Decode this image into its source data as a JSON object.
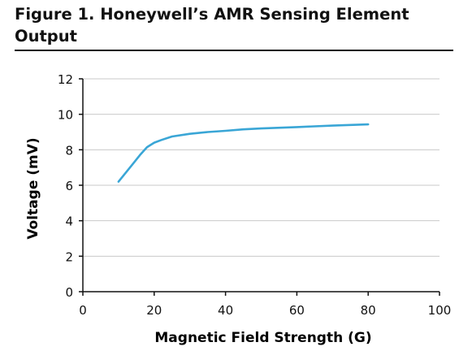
{
  "figure": {
    "title": "Figure 1. Honeywell’s AMR Sensing Element Output"
  },
  "colors": {
    "line": "#3aa6d6",
    "grid": "#c9c9c9",
    "axis": "#111111",
    "text": "#111111"
  },
  "chart_data": {
    "type": "line",
    "title": "Figure 1. Honeywell’s AMR Sensing Element Output",
    "xlabel": "Magnetic Field Strength (G)",
    "ylabel": "Voltage (mV)",
    "xlim": [
      0,
      100
    ],
    "ylim": [
      0,
      12
    ],
    "xticks": [
      0,
      20,
      40,
      60,
      80,
      100
    ],
    "yticks": [
      0,
      2,
      4,
      6,
      8,
      10,
      12
    ],
    "grid": "horizontal",
    "legend": "none",
    "series": [
      {
        "x": [
          10,
          12,
          14,
          16,
          18,
          20,
          22,
          25,
          30,
          35,
          40,
          45,
          50,
          60,
          70,
          80
        ],
        "y": [
          6.2,
          6.7,
          7.2,
          7.7,
          8.15,
          8.4,
          8.55,
          8.75,
          8.9,
          9.0,
          9.07,
          9.15,
          9.2,
          9.28,
          9.36,
          9.43
        ]
      }
    ]
  }
}
